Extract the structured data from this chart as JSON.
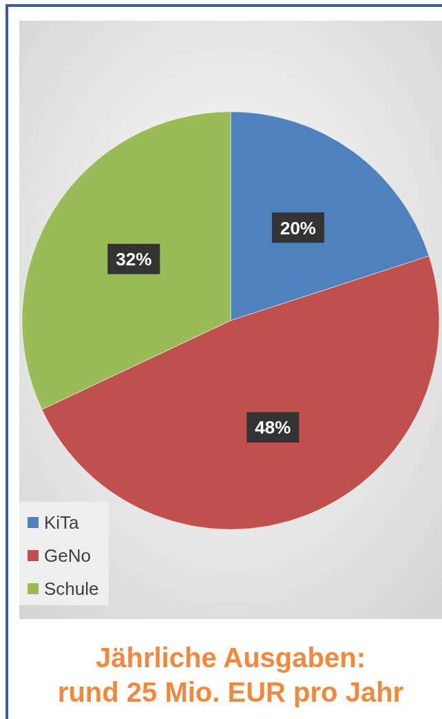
{
  "chart_data": {
    "type": "pie",
    "title": "Jährliche Ausgaben:\nrund 25 Mio. EUR pro Jahr",
    "categories": [
      "KiTa",
      "GeNo",
      "Schule"
    ],
    "values": [
      20,
      48,
      32
    ],
    "colors": [
      "#4f81bd",
      "#c0504d",
      "#9bbb59"
    ],
    "value_labels": [
      "20%",
      "48%",
      "32%"
    ],
    "legend": "bottom left"
  }
}
